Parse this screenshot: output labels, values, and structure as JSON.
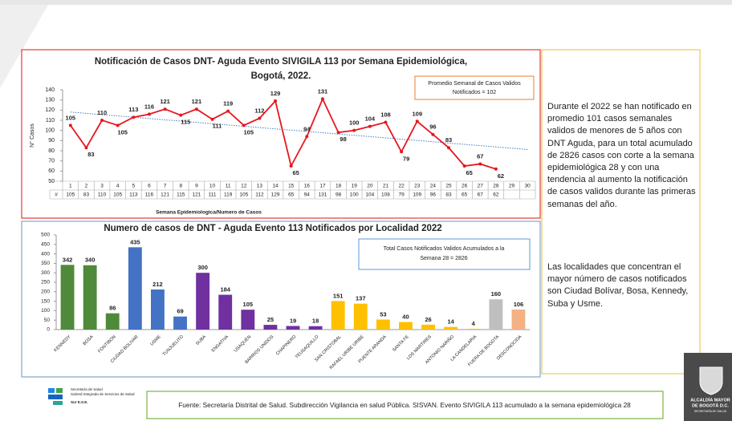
{
  "chart_data": [
    {
      "type": "line",
      "title": [
        "Notificación de Casos DNT- Aguda Evento SIVIGILA 113 por Semana Epidemiológica,",
        "Bogotá, 2022."
      ],
      "annotation": [
        "Promedio Semanal de Casos Validos",
        "Notificados  = 102"
      ],
      "xlabel": "Semana Epidemiologica/Numero de Casos",
      "ylabel": "N° Casos",
      "categories": [
        1,
        2,
        3,
        4,
        5,
        6,
        7,
        8,
        9,
        10,
        11,
        12,
        13,
        14,
        15,
        16,
        17,
        18,
        19,
        20,
        21,
        22,
        23,
        24,
        25,
        26,
        27,
        28,
        29,
        30
      ],
      "series": [
        {
          "name": "#",
          "color": "#e8161d",
          "values": [
            105,
            83,
            110,
            105,
            113,
            116,
            121,
            115,
            121,
            111,
            119,
            105,
            112,
            129,
            65,
            94,
            131,
            98,
            100,
            104,
            108,
            79,
            109,
            96,
            83,
            65,
            67,
            62,
            null,
            null
          ]
        }
      ],
      "trendline_color": "#3f7fc4",
      "ylim": [
        50,
        140
      ],
      "yticks": [
        50,
        60,
        70,
        80,
        90,
        100,
        110,
        120,
        130,
        140
      ]
    },
    {
      "type": "bar",
      "title": "Numero de casos de DNT - Aguda Evento 113 Notificados por Localidad 2022",
      "annotation": [
        "Total Casos Notificados Validos  Acumulados a la",
        "Semana 28 = 2826"
      ],
      "categories": [
        "KENNEDY",
        "BOSA",
        "FONTIBON",
        "CIUDAD BOLIVAR",
        "USME",
        "TUNJUELITO",
        "SUBA",
        "ENGATIVA",
        "USAQUEN",
        "BARRIOS UNIDOS",
        "CHAPINERO",
        "TEUSAQUILLO",
        "SAN CRISTOBAL",
        "RAFAEL URIBE URIBE",
        "PUENTE ARANDA",
        "SANTA FE",
        "LOS MARTIRES",
        "ANTONIO NARIÑO",
        "LA CANDELARIA",
        "FUERA DE BOGOTA",
        "DESCONOCIDA"
      ],
      "values": [
        342,
        340,
        86,
        435,
        212,
        69,
        300,
        184,
        105,
        25,
        19,
        18,
        151,
        137,
        53,
        40,
        26,
        14,
        4,
        160,
        106
      ],
      "colors": [
        "#4f8a3a",
        "#4f8a3a",
        "#4f8a3a",
        "#4472c4",
        "#4472c4",
        "#4472c4",
        "#7030a0",
        "#7030a0",
        "#7030a0",
        "#7030a0",
        "#7030a0",
        "#7030a0",
        "#ffc000",
        "#ffc000",
        "#ffc000",
        "#ffc000",
        "#ffc000",
        "#ffc000",
        "#ffc000",
        "#bfbfbf",
        "#f4b183"
      ],
      "ylim": [
        0,
        500
      ],
      "yticks": [
        0,
        50,
        100,
        150,
        200,
        250,
        300,
        350,
        400,
        450,
        500
      ]
    }
  ],
  "paragraphs": [
    "Durante el 2022 se han notificado en promedio 101 casos semanales validos de menores de 5 años con DNT Aguda, para un total acumulado de 2826 casos con corte a la semana epidemiológica 28 y con una tendencia al aumento la notificación de casos validos durante las primeras semanas del año.",
    "Las localidades que concentran el mayor número de casos notificados son Ciudad Bolívar, Bosa, Kennedy, Suba y Usme."
  ],
  "footer": "Fuente: Secretaría Distrital de Salud. Subdirección Vigilancia en salud Pública. SISVAN. Evento SIVIGILA 113 acumulado a la semana epidemiológica 28",
  "logo_left": [
    "Secretaría de Salud",
    "Subred Integrada de Servicios de Salud",
    "Sur E.S.E."
  ],
  "logo_right": [
    "ALCALDÍA MAYOR",
    "DE BOGOTÁ D.C.",
    "SECRETARÍA DE SALUD"
  ]
}
